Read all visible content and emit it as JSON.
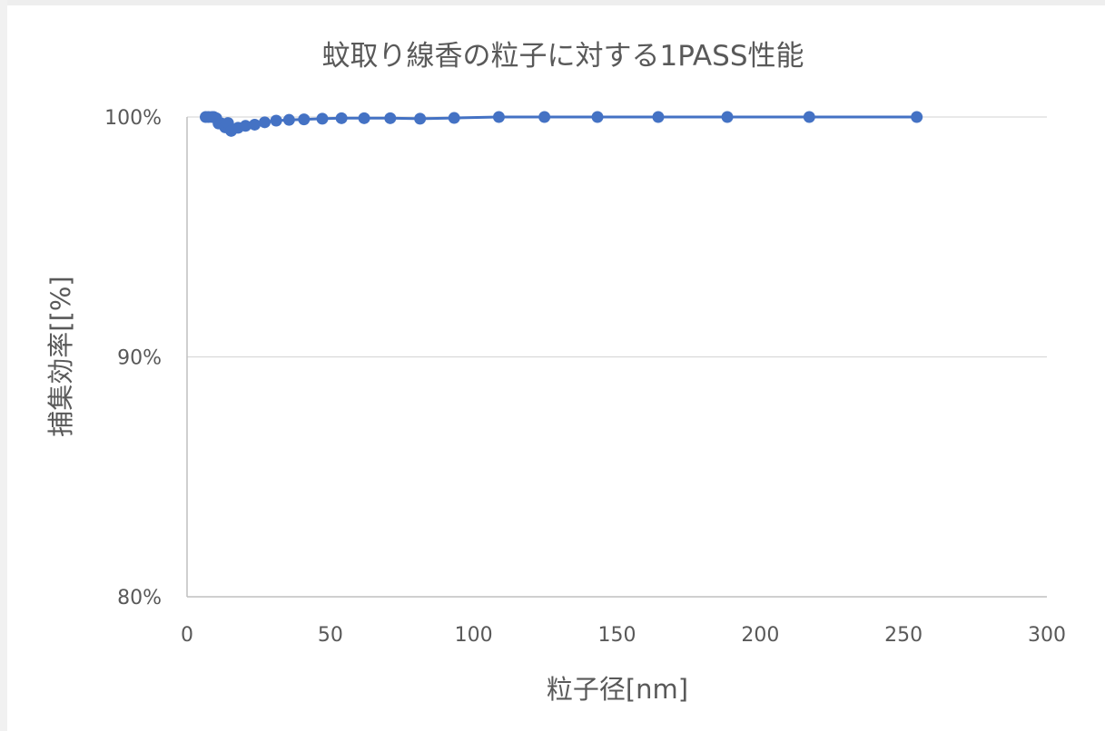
{
  "chart_data": {
    "type": "line",
    "title": "蚊取り線香の粒子に対する1PASS性能",
    "xlabel": "粒子径[nm]",
    "ylabel": "捕集効率[[%]",
    "xlim": [
      0,
      300
    ],
    "ylim": [
      0.8,
      1.0
    ],
    "xticks": [
      0,
      50,
      100,
      150,
      200,
      250,
      300
    ],
    "xtick_labels": [
      "0",
      "50",
      "100",
      "150",
      "200",
      "250",
      "300"
    ],
    "yticks": [
      0.8,
      0.9,
      1.0
    ],
    "ytick_labels": [
      "80%",
      "90%",
      "100%"
    ],
    "grid": "horizontal",
    "legend": "none",
    "series": [
      {
        "color": "#4472C4",
        "marker": "circle",
        "x": [
          6.5,
          7.5,
          8.7,
          9.3,
          10.2,
          11.0,
          12.0,
          13.3,
          14.3,
          15.4,
          17.8,
          20.4,
          23.6,
          27.1,
          31.1,
          35.6,
          40.8,
          47.2,
          53.9,
          61.8,
          70.9,
          81.3,
          93.2,
          108.8,
          124.7,
          143.2,
          164.4,
          188.5,
          217.1,
          254.6
        ],
        "y": [
          1.0,
          1.0,
          1.0,
          1.0,
          0.9995,
          0.9973,
          0.9973,
          0.9957,
          0.9975,
          0.9942,
          0.9955,
          0.9963,
          0.9968,
          0.9978,
          0.9985,
          0.9988,
          0.999,
          0.9993,
          0.9995,
          0.9995,
          0.9995,
          0.9993,
          0.9996,
          1.0,
          1.0,
          1.0,
          1.0,
          1.0,
          1.0,
          1.0
        ]
      }
    ]
  }
}
